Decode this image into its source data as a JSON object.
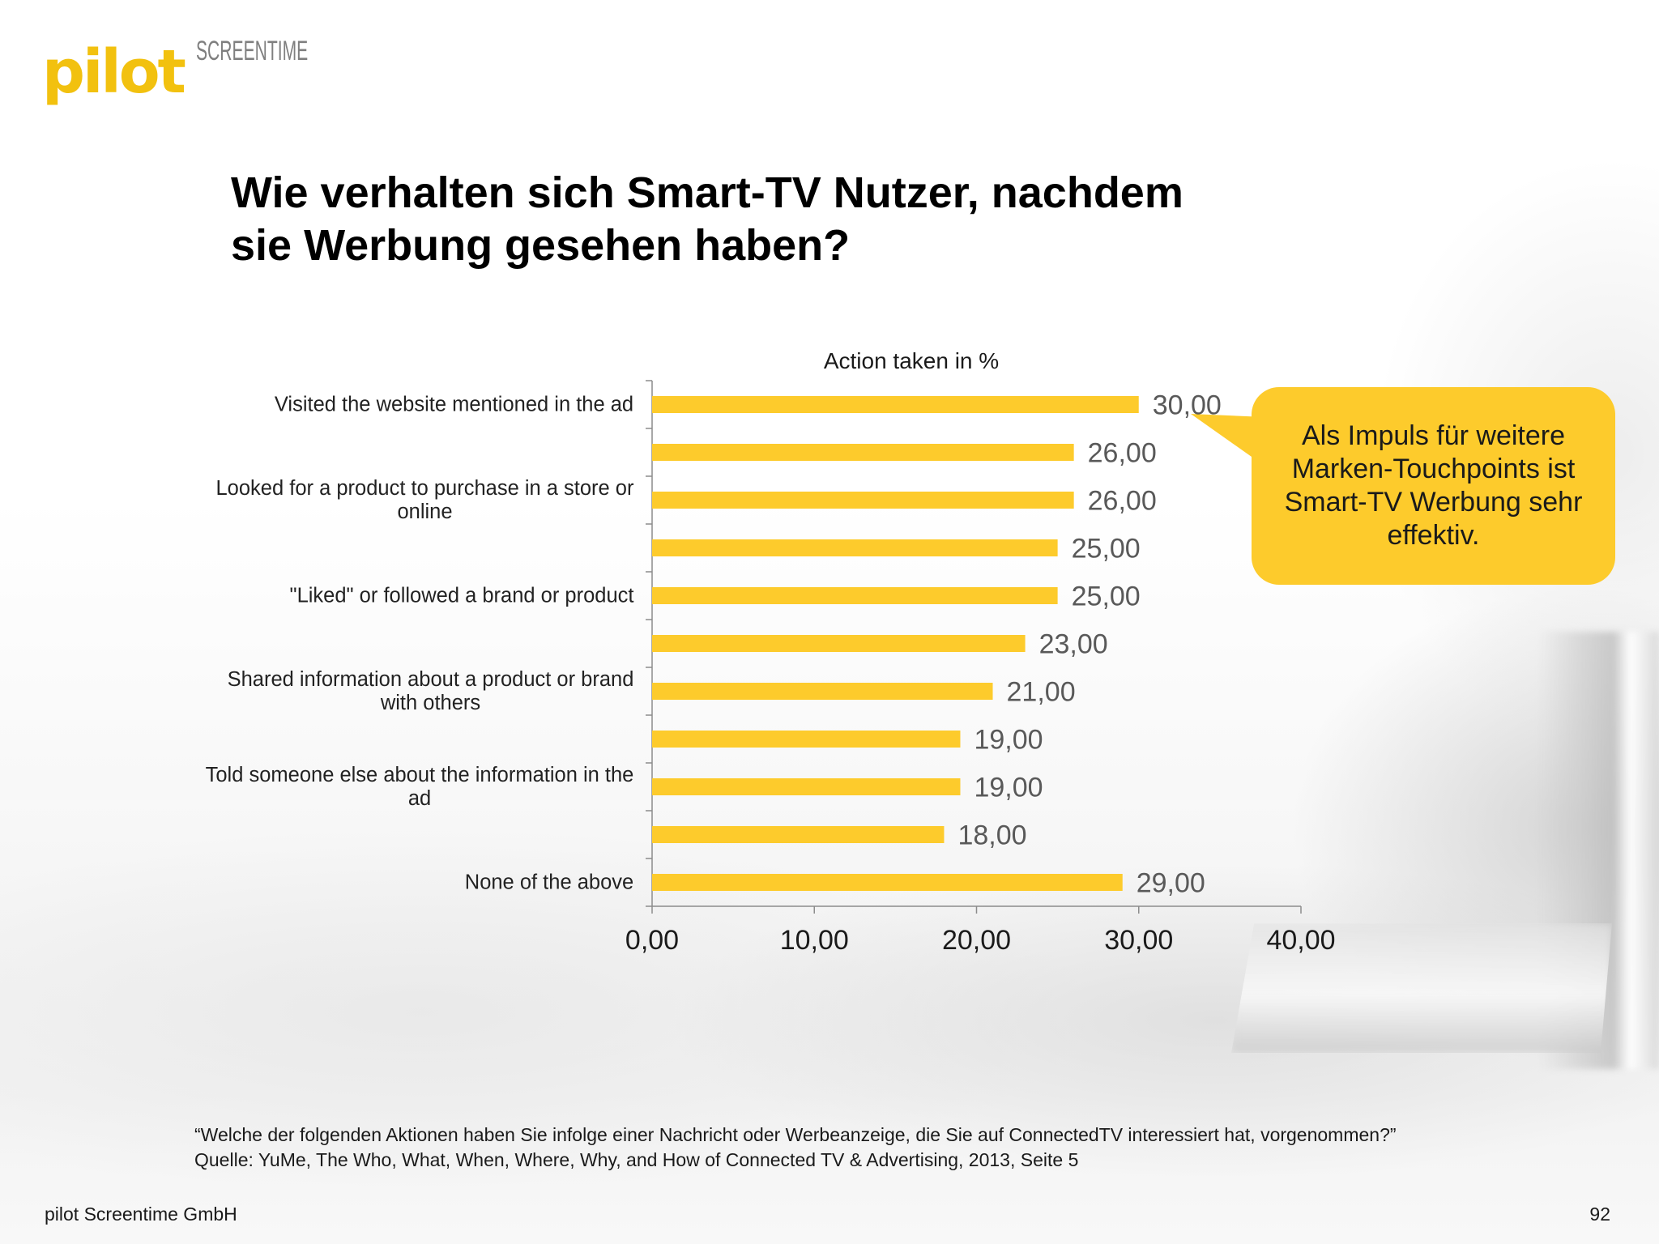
{
  "logo": {
    "wordmark": "pilot",
    "tagline": "SCREENTIME"
  },
  "slide": {
    "title": "Wie verhalten sich Smart-TV Nutzer, nachdem sie Werbung gesehen haben?"
  },
  "chart_data": {
    "type": "bar",
    "orientation": "horizontal",
    "title": "Action taken in %",
    "categories": [
      "Visited the website mentioned in the ad",
      "",
      "Looked for a product to purchase in a store or online",
      "",
      "\"Liked\" or followed a brand or product",
      "",
      "Shared information about a product or brand with others",
      "",
      "Told someone else about the information in the ad",
      "",
      "None of the above"
    ],
    "values": [
      30,
      26,
      26,
      25,
      25,
      23,
      21,
      19,
      19,
      18,
      29
    ],
    "value_labels": [
      "30,00",
      "26,00",
      "26,00",
      "25,00",
      "25,00",
      "23,00",
      "21,00",
      "19,00",
      "19,00",
      "18,00",
      "29,00"
    ],
    "xlim": [
      0,
      40
    ],
    "xticks": [
      0,
      10,
      20,
      30,
      40
    ],
    "xtick_labels": [
      "0,00",
      "10,00",
      "20,00",
      "30,00",
      "40,00"
    ],
    "grid": false,
    "legend": false,
    "bar_color": "#fdcb2c"
  },
  "callout": {
    "text": "Als Impuls für weitere Marken-Touchpoints ist Smart-TV Werbung sehr effektiv.",
    "color": "#fdcb2c"
  },
  "footer": {
    "question": "“Welche der folgenden Aktionen haben Sie infolge einer Nachricht oder Werbeanzeige, die Sie auf ConnectedTV interessiert hat, vorgenommen?”",
    "source": "Quelle: YuMe, The Who, What, When, Where, Why, and How of Connected TV & Advertising, 2013, Seite 5",
    "company": "pilot Screentime GmbH",
    "page_number": "92"
  },
  "colors": {
    "brand_yellow": "#f2c10f",
    "text": "#1a1a1a",
    "value_label": "#595959",
    "axis": "#8c8c8c"
  }
}
